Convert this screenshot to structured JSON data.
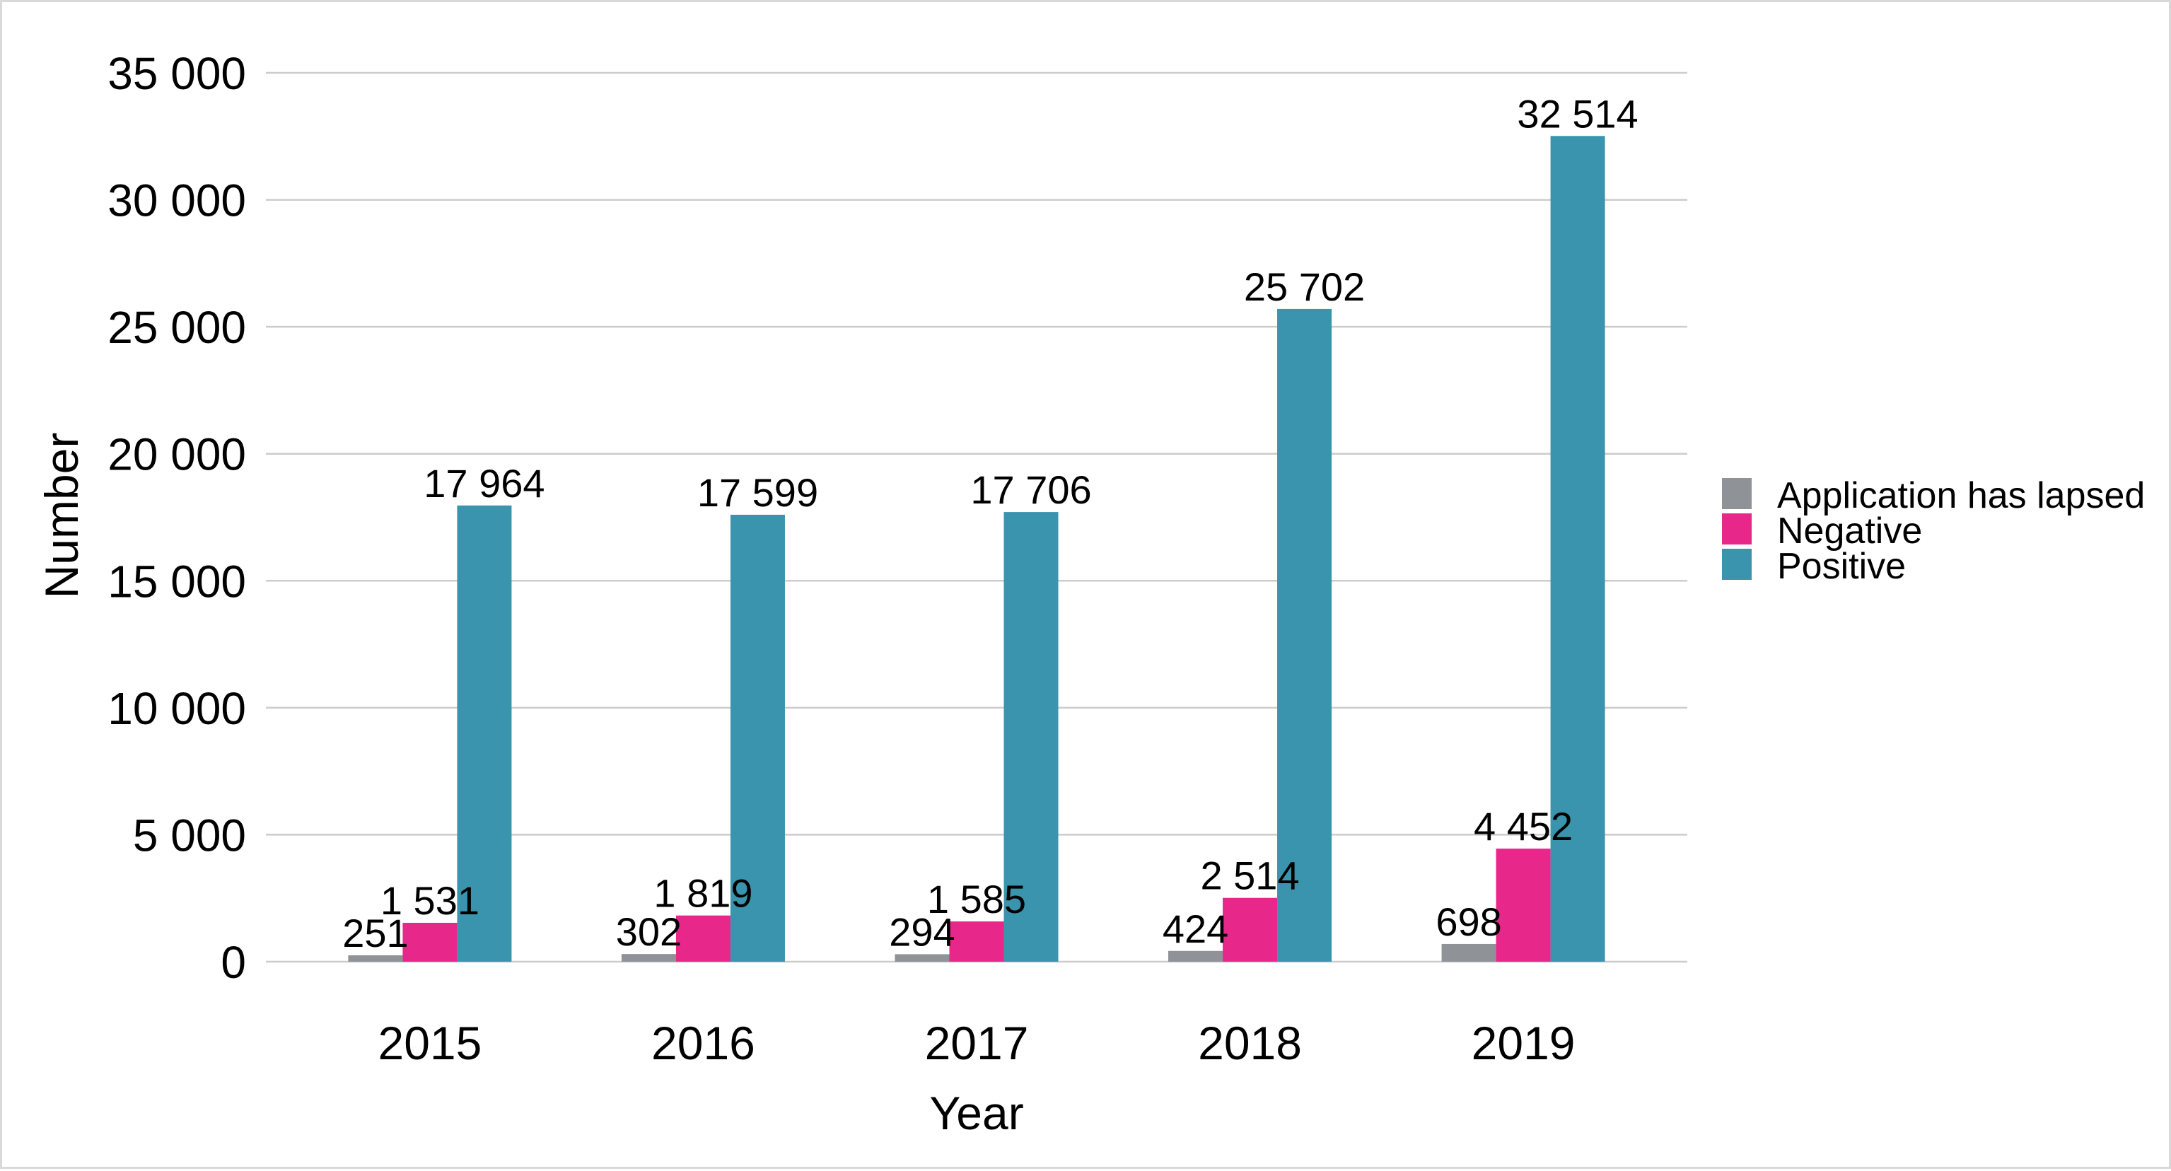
{
  "chart_data": {
    "type": "bar",
    "title": "",
    "xlabel": "Year",
    "ylabel": "Number",
    "categories": [
      "2015",
      "2016",
      "2017",
      "2018",
      "2019"
    ],
    "series": [
      {
        "name": "Application has lapsed",
        "color": "#8f9296",
        "values": [
          251,
          302,
          294,
          424,
          698
        ],
        "labels": [
          "251",
          "302",
          "294",
          "424",
          "698"
        ]
      },
      {
        "name": "Negative",
        "color": "#e8278a",
        "values": [
          1531,
          1819,
          1585,
          2514,
          4452
        ],
        "labels": [
          "1 531",
          "1 819",
          "1 585",
          "2 514",
          "4 452"
        ]
      },
      {
        "name": "Positive",
        "color": "#3a94ad",
        "values": [
          17964,
          17599,
          17706,
          25702,
          32514
        ],
        "labels": [
          "17 964",
          "17 599",
          "17 706",
          "25 702",
          "32 514"
        ]
      }
    ],
    "ylim": [
      0,
      35000
    ],
    "yticks": [
      0,
      5000,
      10000,
      15000,
      20000,
      25000,
      30000,
      35000
    ],
    "ytick_labels": [
      "0",
      "5 000",
      "10 000",
      "15 000",
      "20 000",
      "25 000",
      "30 000",
      "35 000"
    ],
    "grid": true,
    "legend_position": "right"
  }
}
